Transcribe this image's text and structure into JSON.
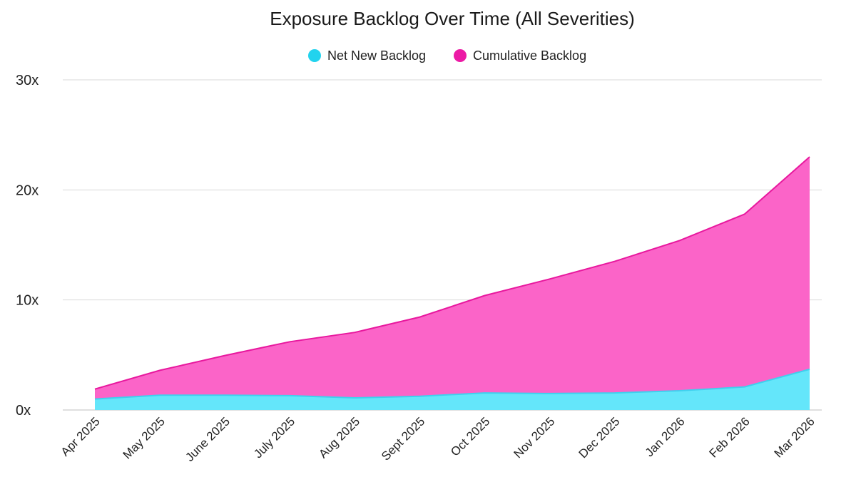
{
  "chart_data": {
    "type": "area",
    "title": "Exposure Backlog Over Time (All Severities)",
    "xlabel": "",
    "ylabel": "",
    "categories": [
      "Apr 2025",
      "May 2025",
      "June 2025",
      "July 2025",
      "Aug 2025",
      "Sept 2025",
      "Oct 2025",
      "Nov 2025",
      "Dec 2025",
      "Jan 2026",
      "Feb 2026",
      "Mar 2026"
    ],
    "series": [
      {
        "name": "Net New Backlog",
        "color": "#64e6fa",
        "line_color": "#3fd0ee",
        "values": [
          1.0,
          1.35,
          1.35,
          1.3,
          1.1,
          1.25,
          1.55,
          1.5,
          1.55,
          1.75,
          2.1,
          3.7
        ]
      },
      {
        "name": "Cumulative Backlog",
        "color": "#fb64c8",
        "line_color": "#e8189e",
        "values": [
          1.9,
          3.6,
          4.95,
          6.2,
          7.05,
          8.45,
          10.4,
          11.9,
          13.5,
          15.4,
          17.8,
          23.0
        ]
      }
    ],
    "y_ticks": [
      "0x",
      "10x",
      "20x",
      "30x"
    ],
    "ylim": [
      0,
      30
    ],
    "grid": true,
    "legend_position": "top-center"
  }
}
